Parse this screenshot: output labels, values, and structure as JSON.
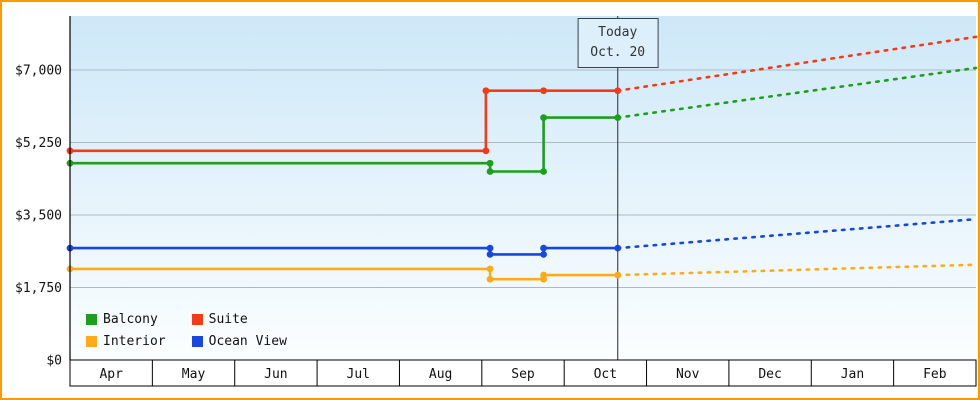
{
  "frame": {
    "border_color": "#ff9900"
  },
  "today_marker": {
    "line1": "Today",
    "line2": "Oct. 20"
  },
  "legend": {
    "items": [
      {
        "label": "Balcony",
        "color": "#1e9e1e"
      },
      {
        "label": "Suite",
        "color": "#f63a17"
      },
      {
        "label": "Interior",
        "color": "#ffab19"
      },
      {
        "label": "Ocean View",
        "color": "#1747e0"
      }
    ]
  },
  "chart_data": {
    "type": "line",
    "title": "",
    "months": [
      "Apr",
      "May",
      "Jun",
      "Jul",
      "Aug",
      "Sep",
      "Oct",
      "Nov",
      "Dec",
      "Jan",
      "Feb"
    ],
    "x_end": 11,
    "today_x": 6.65,
    "y_axis": {
      "ticks": [
        {
          "label": "$0",
          "value": 0
        },
        {
          "label": "$1,750",
          "value": 1750
        },
        {
          "label": "$3,500",
          "value": 3500
        },
        {
          "label": "$5,250",
          "value": 5250
        },
        {
          "label": "$7,000",
          "value": 7000
        }
      ]
    },
    "gridlines": true,
    "legend_position": "bottom-left",
    "background_gradient": [
      "#cde8f8",
      "#fbfeff"
    ],
    "series": [
      {
        "name": "Interior",
        "color": "#ffab19",
        "points_solid": [
          [
            0,
            2200
          ],
          [
            5.1,
            2200
          ],
          [
            5.1,
            1950
          ],
          [
            5.75,
            1950
          ],
          [
            5.75,
            2050
          ],
          [
            6.65,
            2050
          ]
        ],
        "forecast_end_value": 2300
      },
      {
        "name": "Ocean View",
        "color": "#1747e0",
        "points_solid": [
          [
            0,
            2700
          ],
          [
            5.1,
            2700
          ],
          [
            5.1,
            2550
          ],
          [
            5.75,
            2550
          ],
          [
            5.75,
            2700
          ],
          [
            6.65,
            2700
          ]
        ],
        "forecast_end_value": 3400
      },
      {
        "name": "Balcony",
        "color": "#1e9e1e",
        "points_solid": [
          [
            0,
            4750
          ],
          [
            5.1,
            4750
          ],
          [
            5.1,
            4550
          ],
          [
            5.75,
            4550
          ],
          [
            5.75,
            5850
          ],
          [
            6.65,
            5850
          ]
        ],
        "forecast_end_value": 7050
      },
      {
        "name": "Suite",
        "color": "#f63a17",
        "points_solid": [
          [
            0,
            5050
          ],
          [
            5.05,
            5050
          ],
          [
            5.05,
            6500
          ],
          [
            5.75,
            6500
          ],
          [
            6.65,
            6500
          ]
        ],
        "forecast_end_value": 7800
      }
    ]
  }
}
